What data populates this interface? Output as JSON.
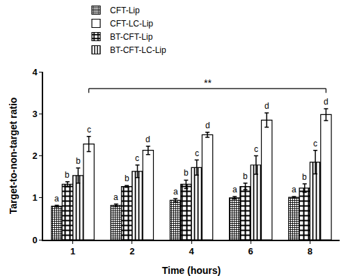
{
  "chart_data": {
    "type": "bar",
    "x_label": "Time (hours)",
    "y_label": "Target-to-non-target ratio",
    "categories": [
      "1",
      "2",
      "4",
      "6",
      "8"
    ],
    "series": [
      {
        "name": "CFT-Lip",
        "color": "#000000",
        "marker": "checkered",
        "values": [
          0.8,
          0.82,
          0.94,
          1.0,
          1.01
        ],
        "errors": [
          0.02,
          0.03,
          0.04,
          0.03,
          0.02
        ],
        "letters": [
          "a",
          "a",
          "a",
          "a",
          "a"
        ]
      },
      {
        "name": "BT-CFT-Lip",
        "color": "#000000",
        "marker": "blocks",
        "values": [
          1.32,
          1.27,
          1.32,
          1.27,
          1.23
        ],
        "errors": [
          0.06,
          0.02,
          0.1,
          0.08,
          0.1
        ],
        "letters": [
          "b",
          "b",
          "b",
          "b",
          "b"
        ]
      },
      {
        "name": "BT-CFT-LC-Lip",
        "color": "#000000",
        "marker": "stripes",
        "values": [
          1.53,
          1.63,
          1.72,
          1.78,
          1.85
        ],
        "errors": [
          0.18,
          0.15,
          0.18,
          0.22,
          0.28
        ],
        "letters": [
          "b",
          "c",
          "c",
          "c",
          "c"
        ]
      },
      {
        "name": "CFT-LC-Lip",
        "color": "#000000",
        "marker": "plain",
        "values": [
          2.28,
          2.13,
          2.5,
          2.85,
          2.98
        ],
        "errors": [
          0.18,
          0.1,
          0.06,
          0.17,
          0.14
        ],
        "letters": [
          "c",
          "d",
          "d",
          "d",
          "d"
        ]
      }
    ],
    "legend_order": [
      "CFT-Lip",
      "CFT-LC-Lip",
      "BT-CFT-Lip",
      "BT-CFT-LC-Lip"
    ],
    "significance": {
      "from": "1",
      "to": "8",
      "series": "CFT-LC-Lip",
      "label": "**",
      "y": 3.6
    },
    "ylim": [
      0,
      4
    ],
    "yticks": [
      0,
      1,
      2,
      3,
      4
    ],
    "grid": false,
    "legend": "top"
  }
}
